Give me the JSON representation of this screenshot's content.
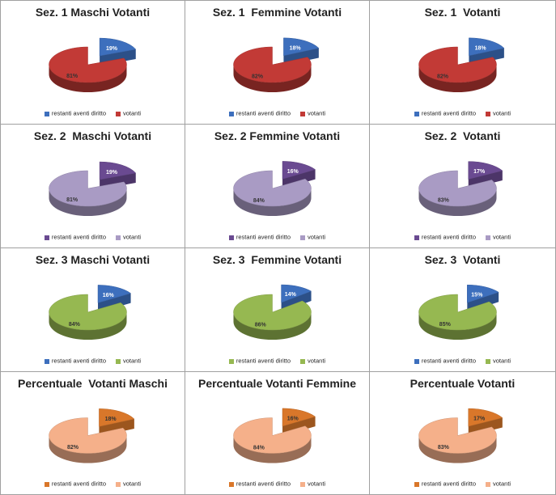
{
  "legend_labels": [
    "restanti aventi diritto",
    "votanti"
  ],
  "themes": {
    "red": {
      "remaining": "#3d6fbd",
      "voters": "#c23a36"
    },
    "purple": {
      "remaining": "#6a4a91",
      "voters": "#a99bc4"
    },
    "green": {
      "remaining": "#3d6fbd",
      "voters": "#96b851"
    },
    "orange": {
      "remaining": "#d9772a",
      "voters": "#f5b08a"
    }
  },
  "chart_data": [
    {
      "type": "pie",
      "title": "Sez. 1 Maschi Votanti",
      "theme": "red",
      "categories": [
        "restanti aventi diritto",
        "votanti"
      ],
      "values": [
        19,
        81
      ],
      "labels": [
        "19%",
        "81%"
      ]
    },
    {
      "type": "pie",
      "title": "Sez. 1  Femmine Votanti",
      "theme": "red",
      "categories": [
        "restanti aventi diritto",
        "votanti"
      ],
      "values": [
        18,
        82
      ],
      "labels": [
        "18%",
        "82%"
      ]
    },
    {
      "type": "pie",
      "title": "Sez. 1  Votanti",
      "theme": "red",
      "categories": [
        "restanti aventi diritto",
        "votanti"
      ],
      "values": [
        18,
        82
      ],
      "labels": [
        "18%",
        "82%"
      ]
    },
    {
      "type": "pie",
      "title": "Sez. 2  Maschi Votanti",
      "theme": "purple",
      "categories": [
        "restanti aventi diritto",
        "votanti"
      ],
      "values": [
        19,
        81
      ],
      "labels": [
        "19%",
        "81%"
      ]
    },
    {
      "type": "pie",
      "title": "Sez. 2 Femmine Votanti",
      "theme": "purple",
      "categories": [
        "restanti aventi diritto",
        "votanti"
      ],
      "values": [
        16,
        84
      ],
      "labels": [
        "16%",
        "84%"
      ]
    },
    {
      "type": "pie",
      "title": "Sez. 2  Votanti",
      "theme": "purple",
      "categories": [
        "restanti aventi diritto",
        "votanti"
      ],
      "values": [
        17,
        83
      ],
      "labels": [
        "17%",
        "83%"
      ]
    },
    {
      "type": "pie",
      "title": "Sez. 3 Maschi Votanti",
      "theme": "green",
      "categories": [
        "restanti aventi diritto",
        "votanti"
      ],
      "values": [
        16,
        84
      ],
      "labels": [
        "16%",
        "84%"
      ]
    },
    {
      "type": "pie",
      "title": "Sez. 3  Femmine Votanti",
      "theme": "green",
      "categories": [
        "restanti aventi diritto",
        "votanti"
      ],
      "values": [
        14,
        86
      ],
      "labels": [
        "14%",
        "86%"
      ],
      "legend_remaining_color": "#96b851"
    },
    {
      "type": "pie",
      "title": "Sez. 3  Votanti",
      "theme": "green",
      "categories": [
        "restanti aventi diritto",
        "votanti"
      ],
      "values": [
        15,
        85
      ],
      "labels": [
        "15%",
        "85%"
      ]
    },
    {
      "type": "pie",
      "title": "Percentuale  Votanti Maschi",
      "theme": "orange",
      "categories": [
        "restanti aventi diritto",
        "votanti"
      ],
      "values": [
        18,
        82
      ],
      "labels": [
        "18%",
        "82%"
      ]
    },
    {
      "type": "pie",
      "title": "Percentuale Votanti Femmine",
      "theme": "orange",
      "categories": [
        "restanti aventi diritto",
        "votanti"
      ],
      "values": [
        16,
        84
      ],
      "labels": [
        "16%",
        "84%"
      ]
    },
    {
      "type": "pie",
      "title": "Percentuale Votanti",
      "theme": "orange",
      "categories": [
        "restanti aventi diritto",
        "votanti"
      ],
      "values": [
        17,
        83
      ],
      "labels": [
        "17%",
        "83%"
      ]
    }
  ]
}
